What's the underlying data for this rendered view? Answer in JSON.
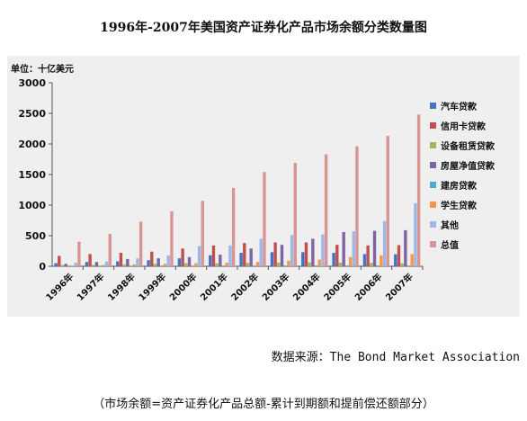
{
  "title": "1996年-2007年美国资产证券化产品市场余额分类数量图",
  "source_text": "数据来源：The Bond Market Association",
  "note_text": "（市场余额=资产证券化产品总额-累计到期额和提前偿还额部分）",
  "chart_data": {
    "type": "bar",
    "unit_label": "单位：十亿美元",
    "categories": [
      "1996年",
      "1997年",
      "1998年",
      "1999年",
      "2000年",
      "2001年",
      "2002年",
      "2003年",
      "2004年",
      "2005年",
      "2006年",
      "2007年"
    ],
    "ylim": [
      0,
      3000
    ],
    "yticks": [
      0,
      500,
      1000,
      1500,
      2000,
      2500,
      3000
    ],
    "grid": false,
    "legend_position": "right",
    "series": [
      {
        "name": "汽车贷款",
        "color": "#4472c4",
        "values": [
          50,
          70,
          80,
          100,
          130,
          180,
          220,
          230,
          230,
          220,
          200,
          195
        ]
      },
      {
        "name": "信用卡贷款",
        "color": "#c0504d",
        "values": [
          170,
          200,
          220,
          240,
          290,
          340,
          380,
          390,
          390,
          350,
          340,
          345
        ]
      },
      {
        "name": "设备租赁贷款",
        "color": "#9bbb59",
        "values": [
          20,
          25,
          30,
          40,
          50,
          50,
          55,
          60,
          65,
          60,
          55,
          50
        ]
      },
      {
        "name": "房屋净值贷款",
        "color": "#8064a2",
        "values": [
          40,
          70,
          120,
          130,
          150,
          190,
          290,
          350,
          450,
          560,
          580,
          590
        ]
      },
      {
        "name": "建房贷款",
        "color": "#4bacc6",
        "values": [
          5,
          5,
          8,
          10,
          10,
          10,
          10,
          12,
          12,
          12,
          12,
          12
        ]
      },
      {
        "name": "学生贷款",
        "color": "#f79646",
        "values": [
          10,
          20,
          30,
          40,
          50,
          60,
          70,
          90,
          110,
          150,
          180,
          200
        ]
      },
      {
        "name": "其他",
        "color": "#9db8e6",
        "values": [
          60,
          80,
          130,
          180,
          330,
          340,
          450,
          510,
          520,
          570,
          740,
          1030
        ]
      },
      {
        "name": "总值",
        "color": "#d99594",
        "values": [
          400,
          530,
          730,
          900,
          1070,
          1280,
          1540,
          1690,
          1830,
          1960,
          2130,
          2480
        ]
      }
    ]
  }
}
